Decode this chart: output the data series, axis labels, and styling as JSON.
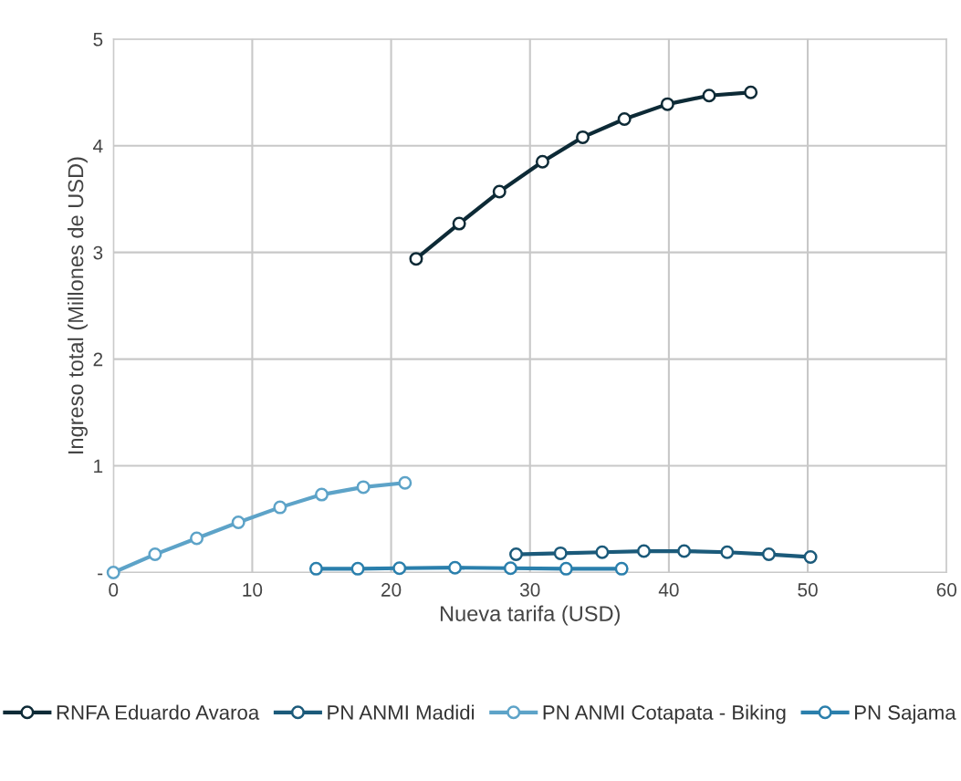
{
  "chart_data": {
    "type": "line",
    "xlabel": "Nueva tarifa (USD)",
    "ylabel": "Ingreso total (Millones de USD)",
    "xlim": [
      0,
      60
    ],
    "xticks": [
      0,
      10,
      20,
      30,
      40,
      50,
      60
    ],
    "ylim": [
      0,
      5
    ],
    "yticks": [
      {
        "value": 0,
        "label": "-"
      },
      1,
      2,
      3,
      4,
      5
    ],
    "grid": true,
    "legend": "bottom",
    "marker": "circle",
    "line_style": "solid",
    "series": [
      {
        "name": "RNFA Eduardo Avaroa",
        "color": "#0d2a36",
        "x": [
          21.8,
          24.9,
          27.8,
          30.9,
          33.8,
          36.8,
          39.9,
          42.9,
          45.9
        ],
        "values": [
          2.94,
          3.27,
          3.57,
          3.85,
          4.08,
          4.25,
          4.39,
          4.47,
          4.5
        ]
      },
      {
        "name": "PN ANMI Madidi",
        "color": "#1b5a7a",
        "x": [
          29.0,
          32.2,
          35.2,
          38.2,
          41.1,
          44.2,
          47.2,
          50.2
        ],
        "values": [
          0.17,
          0.18,
          0.19,
          0.2,
          0.2,
          0.19,
          0.17,
          0.145
        ]
      },
      {
        "name": "PN ANMI Cotapata - Biking",
        "color": "#5da3c8",
        "x": [
          0,
          3,
          6,
          9,
          12,
          15,
          18,
          21
        ],
        "values": [
          0,
          0.17,
          0.32,
          0.47,
          0.61,
          0.73,
          0.8,
          0.84
        ]
      },
      {
        "name": "PN Sajama",
        "color": "#2a7fac",
        "x": [
          14.6,
          17.6,
          20.6,
          24.6,
          28.6,
          32.6,
          36.6
        ],
        "values": [
          0.035,
          0.035,
          0.04,
          0.045,
          0.04,
          0.035,
          0.035
        ]
      }
    ]
  }
}
